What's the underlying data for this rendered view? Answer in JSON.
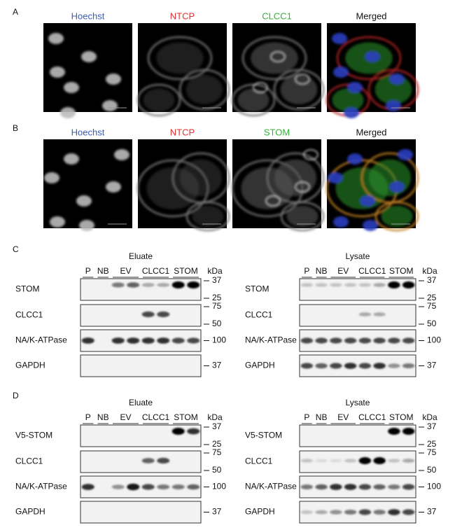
{
  "panels": [
    {
      "label": "A",
      "channels": [
        "Hoechst",
        "NTCP",
        "CLCC1",
        "Merged"
      ]
    },
    {
      "label": "B",
      "channels": [
        "Hoechst",
        "NTCP",
        "STOM",
        "Merged"
      ]
    },
    {
      "label": "C",
      "blots": [
        {
          "title": "Eluate",
          "lanes": [
            "P",
            "NB",
            "EV",
            "CLCC1",
            "STOM"
          ],
          "unit": "kDa",
          "rows": [
            {
              "label": "STOM",
              "markers": [
                37,
                25
              ]
            },
            {
              "label": "CLCC1",
              "markers": [
                75,
                50
              ]
            },
            {
              "label": "NA/K-ATPase",
              "markers": [
                100
              ]
            },
            {
              "label": "GAPDH",
              "markers": [
                37
              ]
            }
          ]
        },
        {
          "title": "Lysate",
          "lanes": [
            "P",
            "NB",
            "EV",
            "CLCC1",
            "STOM"
          ],
          "unit": "kDa",
          "rows": [
            {
              "label": "STOM",
              "markers": [
                37,
                25
              ]
            },
            {
              "label": "CLCC1",
              "markers": [
                75,
                50
              ]
            },
            {
              "label": "NA/K-ATPase",
              "markers": [
                100
              ]
            },
            {
              "label": "GAPDH",
              "markers": [
                37
              ]
            }
          ]
        }
      ]
    },
    {
      "label": "D",
      "blots": [
        {
          "title": "Eluate",
          "lanes": [
            "P",
            "NB",
            "EV",
            "CLCC1",
            "STOM"
          ],
          "unit": "kDa",
          "rows": [
            {
              "label": "V5-STOM",
              "markers": [
                37,
                25
              ]
            },
            {
              "label": "CLCC1",
              "markers": [
                75,
                50
              ]
            },
            {
              "label": "NA/K-ATPase",
              "markers": [
                100
              ]
            },
            {
              "label": "GAPDH",
              "markers": [
                37
              ]
            }
          ]
        },
        {
          "title": "Lysate",
          "lanes": [
            "P",
            "NB",
            "EV",
            "CLCC1",
            "STOM"
          ],
          "unit": "kDa",
          "rows": [
            {
              "label": "V5-STOM",
              "markers": [
                37,
                25
              ]
            },
            {
              "label": "CLCC1",
              "markers": [
                75,
                50
              ]
            },
            {
              "label": "NA/K-ATPase",
              "markers": [
                100
              ]
            },
            {
              "label": "GAPDH",
              "markers": [
                37
              ]
            }
          ]
        }
      ]
    }
  ]
}
